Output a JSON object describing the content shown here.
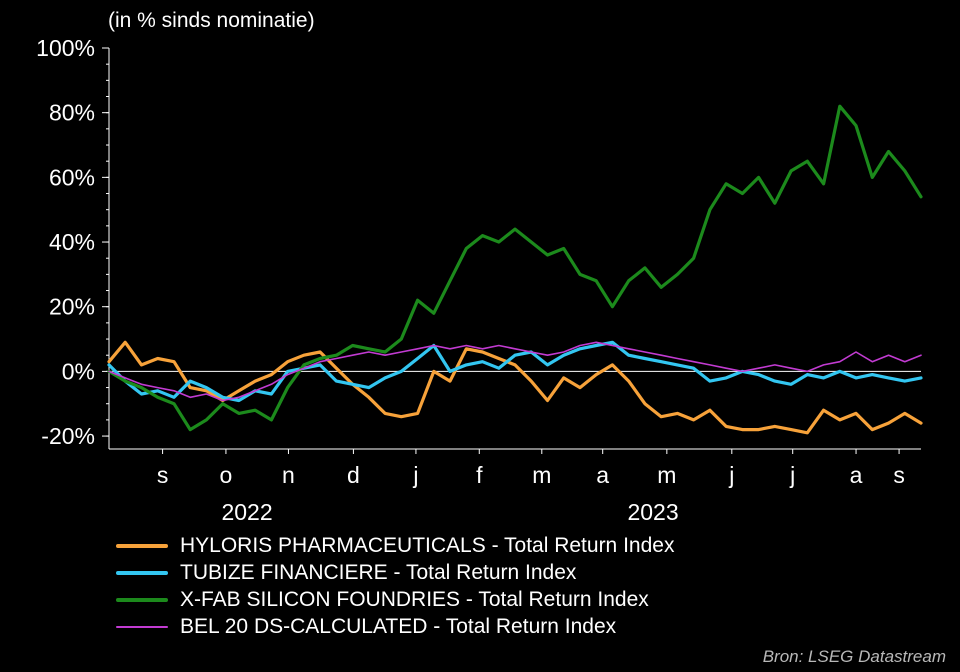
{
  "subtitle": "(in % sinds nominatie)",
  "source": "Bron: LSEG Datastream",
  "chart_data": {
    "type": "line",
    "ylim": [
      -24,
      100
    ],
    "yticks": [
      -20,
      0,
      20,
      40,
      60,
      80,
      100
    ],
    "ytick_labels": [
      "-20%",
      "0%",
      "20%",
      "40%",
      "60%",
      "80%",
      "100%"
    ],
    "xlim": [
      0,
      100
    ],
    "month_ticks": [
      {
        "label": "s",
        "x": 6.6
      },
      {
        "label": "o",
        "x": 14.4
      },
      {
        "label": "n",
        "x": 22.1
      },
      {
        "label": "d",
        "x": 30.1
      },
      {
        "label": "j",
        "x": 37.8
      },
      {
        "label": "f",
        "x": 45.6
      },
      {
        "label": "m",
        "x": 53.3
      },
      {
        "label": "a",
        "x": 60.8
      },
      {
        "label": "m",
        "x": 68.7
      },
      {
        "label": "j",
        "x": 76.7
      },
      {
        "label": "j",
        "x": 84.2
      },
      {
        "label": "a",
        "x": 92.0
      },
      {
        "label": "s",
        "x": 97.3
      }
    ],
    "year_labels": [
      {
        "label": "2022",
        "x": 17.0
      },
      {
        "label": "2023",
        "x": 67.0
      }
    ],
    "x": [
      0,
      2,
      4,
      6,
      8,
      10,
      12,
      14,
      16,
      18,
      20,
      22,
      24,
      26,
      28,
      30,
      32,
      34,
      36,
      38,
      40,
      42,
      44,
      46,
      48,
      50,
      52,
      54,
      56,
      58,
      60,
      62,
      64,
      66,
      68,
      70,
      72,
      74,
      76,
      78,
      80,
      82,
      84,
      86,
      88,
      90,
      92,
      94,
      96,
      98,
      100
    ],
    "series": [
      {
        "name": "HYLORIS PHARMACEUTICALS - Total Return Index",
        "color": "#f7a23a",
        "width": 3.2,
        "values": [
          3,
          9,
          2,
          4,
          3,
          -5,
          -6,
          -9,
          -6,
          -3,
          -1,
          3,
          5,
          6,
          1,
          -4,
          -8,
          -13,
          -14,
          -13,
          0,
          -3,
          7,
          6,
          4,
          2,
          -3,
          -9,
          -2,
          -5,
          -1,
          2,
          -3,
          -10,
          -14,
          -13,
          -15,
          -12,
          -17,
          -18,
          -18,
          -17,
          -18,
          -19,
          -12,
          -15,
          -13,
          -18,
          -16,
          -13,
          -16
        ]
      },
      {
        "name": "TUBIZE FINANCIERE - Total Return Index",
        "color": "#33c6f1",
        "width": 3.2,
        "values": [
          2,
          -3,
          -7,
          -6,
          -8,
          -3,
          -5,
          -8,
          -9,
          -6,
          -7,
          0,
          1,
          2,
          -3,
          -4,
          -5,
          -2,
          0,
          4,
          8,
          0,
          2,
          3,
          1,
          5,
          6,
          2,
          5,
          7,
          8,
          9,
          5,
          4,
          3,
          2,
          1,
          -3,
          -2,
          0,
          -1,
          -3,
          -4,
          -1,
          -2,
          0,
          -2,
          -1,
          -2,
          -3,
          -2
        ]
      },
      {
        "name": "X-FAB SILICON FOUNDRIES - Total Return Index",
        "color": "#1c8a1c",
        "width": 3.2,
        "values": [
          0,
          -3,
          -5,
          -8,
          -10,
          -18,
          -15,
          -10,
          -13,
          -12,
          -15,
          -5,
          2,
          4,
          5,
          8,
          7,
          6,
          10,
          22,
          18,
          28,
          38,
          42,
          40,
          44,
          40,
          36,
          38,
          30,
          28,
          20,
          28,
          32,
          26,
          30,
          35,
          50,
          58,
          55,
          60,
          52,
          62,
          65,
          58,
          82,
          76,
          60,
          68,
          62,
          54
        ]
      },
      {
        "name": "BEL 20 DS-CALCULATED - Total Return Index",
        "color": "#c23bd2",
        "width": 1.6,
        "values": [
          0,
          -2,
          -4,
          -5,
          -6,
          -8,
          -7,
          -9,
          -8,
          -6,
          -4,
          -1,
          1,
          3,
          4,
          5,
          6,
          5,
          6,
          7,
          8,
          7,
          8,
          7,
          8,
          7,
          6,
          5,
          6,
          8,
          9,
          8,
          7,
          6,
          5,
          4,
          3,
          2,
          1,
          0,
          1,
          2,
          1,
          0,
          2,
          3,
          6,
          3,
          5,
          3,
          5
        ]
      }
    ]
  }
}
